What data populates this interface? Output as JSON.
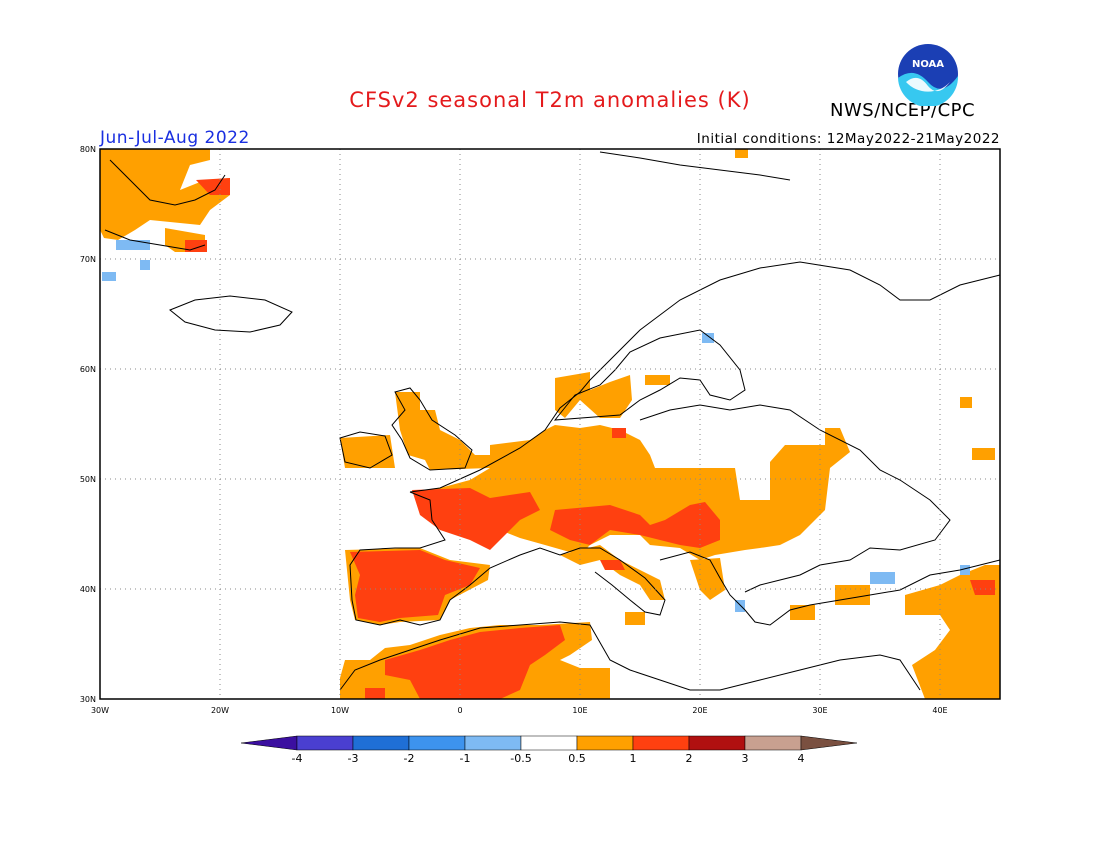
{
  "title": "CFSv2 seasonal T2m anomalies (K)",
  "agency": "NWS/NCEP/CPC",
  "logo_text": "NOAA",
  "season": "Jun-Jul-Aug 2022",
  "initial_conditions": "Initial conditions: 12May2022-21May2022",
  "y_ticks": [
    "80N",
    "70N",
    "60N",
    "50N",
    "40N",
    "30N"
  ],
  "x_ticks": [
    "30W",
    "20W",
    "10W",
    "0",
    "10E",
    "20E",
    "30E",
    "40E"
  ],
  "colorbar": {
    "labels": [
      "-4",
      "-3",
      "-2",
      "-1",
      "-0.5",
      "0.5",
      "1",
      "2",
      "3",
      "4"
    ],
    "colors": [
      "#3b0fa0",
      "#4a3fd0",
      "#1f6fd6",
      "#3d93ee",
      "#7ebaf3",
      "#ffffff",
      "#ffa000",
      "#ff4010",
      "#b01010",
      "#c8a090",
      "#7a5040"
    ]
  }
}
